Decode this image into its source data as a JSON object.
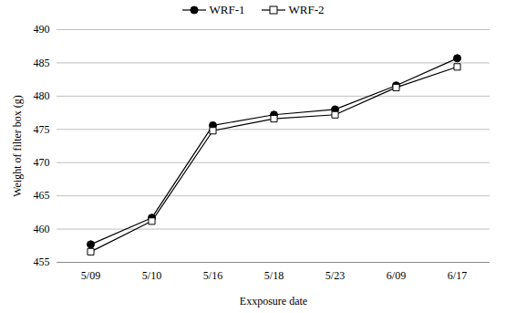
{
  "chart_data": {
    "type": "line",
    "x_label": "Exxposure date",
    "y_label": "Weight of filter box (g)",
    "categories": [
      "5/09",
      "5/10",
      "5/16",
      "5/18",
      "5/23",
      "6/09",
      "6/17"
    ],
    "series": [
      {
        "name": "WRF-1",
        "color": "#000000",
        "marker": "circle",
        "line_style": "solid",
        "values": [
          457.7,
          461.7,
          475.6,
          477.2,
          478.0,
          481.6,
          485.7
        ]
      },
      {
        "name": "WRF-2",
        "color": "#000000",
        "marker": "square-open",
        "line_style": "solid",
        "values": [
          456.6,
          461.2,
          474.8,
          476.6,
          477.2,
          481.3,
          484.4
        ]
      }
    ],
    "ylim": [
      455,
      490
    ],
    "yticks": [
      455,
      460,
      465,
      470,
      475,
      480,
      485,
      490
    ],
    "grid": true,
    "legend": "top"
  }
}
